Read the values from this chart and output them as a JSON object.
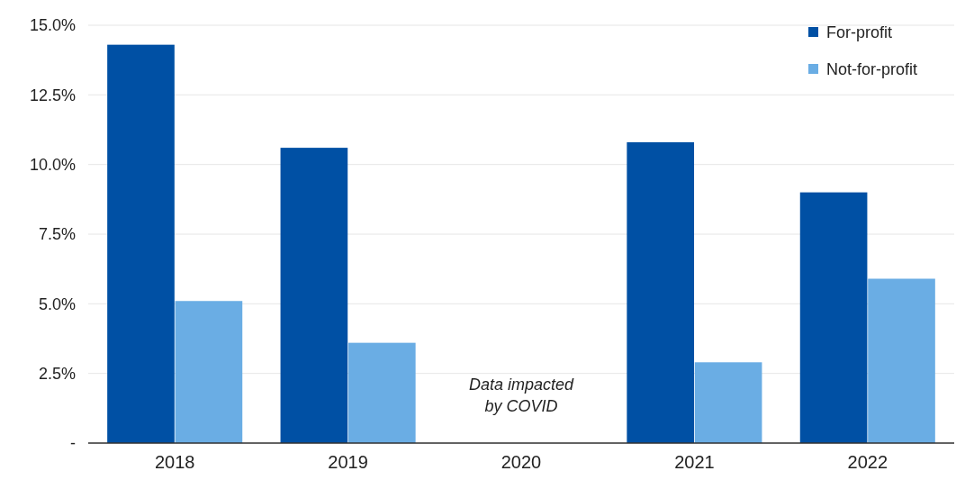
{
  "chart_data": {
    "type": "bar",
    "categories": [
      "2018",
      "2019",
      "2020",
      "2021",
      "2022"
    ],
    "series": [
      {
        "name": "For-profit",
        "color": "#0050a4",
        "values": [
          14.3,
          10.6,
          null,
          10.8,
          9.0
        ]
      },
      {
        "name": "Not-for-profit",
        "color": "#6aade4",
        "values": [
          5.1,
          3.6,
          null,
          2.9,
          5.9
        ]
      }
    ],
    "ylim": [
      0,
      15
    ],
    "yticks": [
      {
        "value": 0,
        "label": "-"
      },
      {
        "value": 2.5,
        "label": "2.5%"
      },
      {
        "value": 5,
        "label": "5.0%"
      },
      {
        "value": 7.5,
        "label": "7.5%"
      },
      {
        "value": 10,
        "label": "10.0%"
      },
      {
        "value": 12.5,
        "label": "12.5%"
      },
      {
        "value": 15,
        "label": "15.0%"
      }
    ],
    "grid": "y",
    "legend": "top right",
    "annotations": [
      "Data impacted\nby COVID"
    ]
  }
}
